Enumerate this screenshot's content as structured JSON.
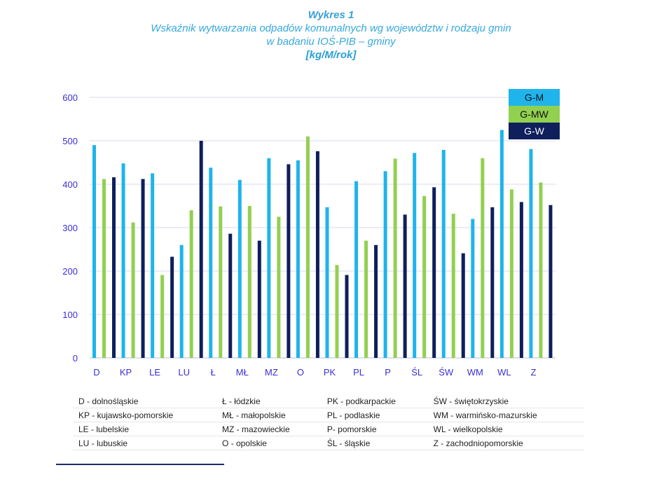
{
  "title": {
    "line1": "Wykres 1",
    "line2": "Wskaźnik wytwarzania odpadów komunalnych wg województw i rodzaju gmin",
    "line3": "w badaniu IOŚ-PIB – gminy",
    "line4": "[kg/M/rok]"
  },
  "colors": {
    "G-M": "#1fb4ec",
    "G-MW": "#92d050",
    "G-W": "#0f1f5c",
    "axis_text": "#3a2fd6",
    "grid": "#d9d9f0"
  },
  "chart_data": {
    "type": "bar",
    "categories": [
      "D",
      "KP",
      "LE",
      "LU",
      "Ł",
      "MŁ",
      "MZ",
      "O",
      "PK",
      "PL",
      "P",
      "ŚL",
      "ŚW",
      "WM",
      "WL",
      "Z"
    ],
    "yticks": [
      "0",
      "100",
      "200",
      "300",
      "400",
      "500",
      "600"
    ],
    "ylim": [
      0,
      600
    ],
    "grid": true,
    "legend_position": "top-right",
    "series": [
      {
        "name": "G-M",
        "values": [
          490,
          448,
          425,
          260,
          438,
          410,
          460,
          455,
          347,
          407,
          430,
          472,
          479,
          320,
          525,
          481
        ]
      },
      {
        "name": "G-MW",
        "values": [
          412,
          312,
          191,
          340,
          349,
          350,
          325,
          510,
          214,
          270,
          459,
          373,
          332,
          460,
          388,
          404
        ]
      },
      {
        "name": "G-W",
        "values": [
          416,
          412,
          233,
          500,
          286,
          270,
          446,
          476,
          191,
          260,
          330,
          393,
          241,
          347,
          359,
          352
        ]
      }
    ]
  },
  "abbreviations": [
    [
      "D - dolnośląskie",
      "Ł - łódzkie",
      "PK - podkarpackie",
      "ŚW - świętokrzyskie"
    ],
    [
      "KP - kujawsko-pomorskie",
      "MŁ - małopolskie",
      "PL - podlaskie",
      "WM - warmińsko-mazurskie"
    ],
    [
      "LE - lubelskie",
      "MZ - mazowieckie",
      "P- pomorskie",
      "WL - wielkopolskie"
    ],
    [
      "LU - lubuskie",
      "O - opolskie",
      "ŚL - śląskie",
      "Z - zachodniopomorskie"
    ]
  ]
}
